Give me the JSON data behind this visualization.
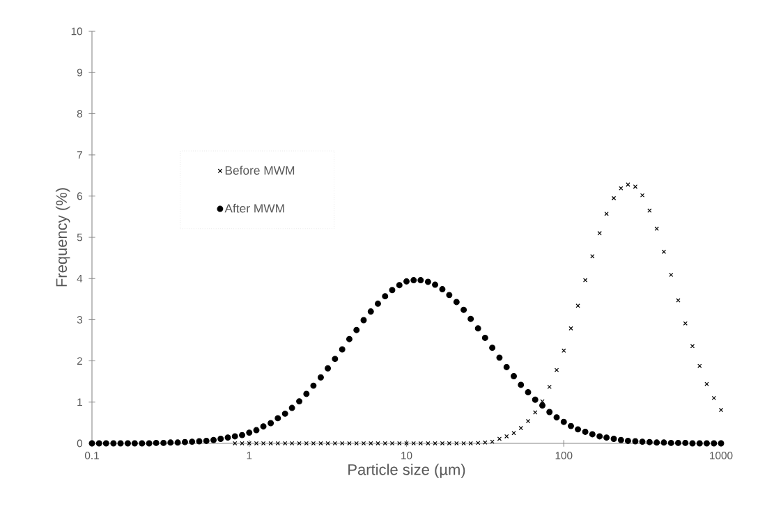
{
  "chart_data": {
    "type": "scatter",
    "xlabel": "Particle size (µm)",
    "ylabel": "Frequency (%)",
    "log": "x",
    "legend": "left",
    "x": [
      0.1,
      0.111,
      0.123,
      0.137,
      0.152,
      0.169,
      0.187,
      0.208,
      0.231,
      0.256,
      0.285,
      0.316,
      0.351,
      0.39,
      0.433,
      0.481,
      0.534,
      0.593,
      0.658,
      0.731,
      0.811,
      0.901,
      1,
      1.11,
      1.23,
      1.37,
      1.52,
      1.69,
      1.87,
      2.08,
      2.31,
      2.56,
      2.85,
      3.16,
      3.51,
      3.9,
      4.33,
      4.81,
      5.34,
      5.93,
      6.58,
      7.31,
      8.11,
      9.01,
      10,
      11.1,
      12.3,
      13.7,
      15.2,
      16.9,
      18.7,
      20.8,
      23.1,
      25.6,
      28.5,
      31.6,
      35.1,
      39,
      43.3,
      48.1,
      53.4,
      59.3,
      65.8,
      73.1,
      81.1,
      90.1,
      100,
      111,
      123,
      137,
      152,
      169,
      187,
      208,
      231,
      256,
      285,
      316,
      351,
      390,
      433,
      481,
      534,
      593,
      658,
      731,
      811,
      901,
      1000
    ],
    "series": [
      {
        "name": "Before MWM",
        "color": "#000000",
        "marker": "cross",
        "values": [
          null,
          null,
          null,
          null,
          null,
          null,
          null,
          null,
          null,
          null,
          null,
          null,
          null,
          null,
          null,
          null,
          null,
          null,
          null,
          null,
          0,
          0,
          0,
          0,
          0,
          0,
          0,
          0,
          0,
          0,
          0,
          0,
          0,
          0,
          0,
          0,
          0,
          0,
          0,
          0,
          0,
          0,
          0,
          0,
          0,
          0,
          0,
          0,
          0,
          0,
          0,
          0,
          0,
          0,
          0.01,
          0.02,
          0.04,
          0.11,
          0.17,
          0.25,
          0.37,
          0.54,
          0.75,
          1.02,
          1.37,
          1.78,
          2.25,
          2.79,
          3.34,
          3.96,
          4.54,
          5.1,
          5.57,
          5.95,
          6.19,
          6.28,
          6.23,
          6.02,
          5.65,
          5.21,
          4.65,
          4.09,
          3.47,
          2.91,
          2.36,
          1.88,
          1.44,
          1.1,
          0.81
        ]
      },
      {
        "name": "After MWM",
        "color": "#000000",
        "marker": "circle",
        "values": [
          0,
          0,
          0,
          0,
          0,
          0,
          0,
          0,
          0,
          0.01,
          0.01,
          0.02,
          0.02,
          0.03,
          0.04,
          0.05,
          0.06,
          0.08,
          0.11,
          0.14,
          0.17,
          0.2,
          0.26,
          0.32,
          0.41,
          0.49,
          0.61,
          0.72,
          0.86,
          1.02,
          1.2,
          1.4,
          1.6,
          1.82,
          2.05,
          2.28,
          2.53,
          2.75,
          2.99,
          3.2,
          3.39,
          3.57,
          3.72,
          3.84,
          3.93,
          3.96,
          3.96,
          3.92,
          3.85,
          3.74,
          3.6,
          3.43,
          3.24,
          3.02,
          2.79,
          2.56,
          2.32,
          2.08,
          1.85,
          1.63,
          1.42,
          1.24,
          1.06,
          0.92,
          0.76,
          0.63,
          0.52,
          0.42,
          0.34,
          0.28,
          0.22,
          0.17,
          0.14,
          0.11,
          0.08,
          0.06,
          0.05,
          0.04,
          0.03,
          0.02,
          0.02,
          0.01,
          0.01,
          0.01,
          0,
          0,
          0,
          0,
          0
        ]
      }
    ],
    "xlim": [
      0.1,
      1000
    ],
    "xticks": [
      0.1,
      1,
      10,
      100,
      1000
    ],
    "ylim": [
      0,
      10
    ],
    "yticks": [
      0,
      1,
      2,
      3,
      4,
      5,
      6,
      7,
      8,
      9,
      10
    ]
  }
}
